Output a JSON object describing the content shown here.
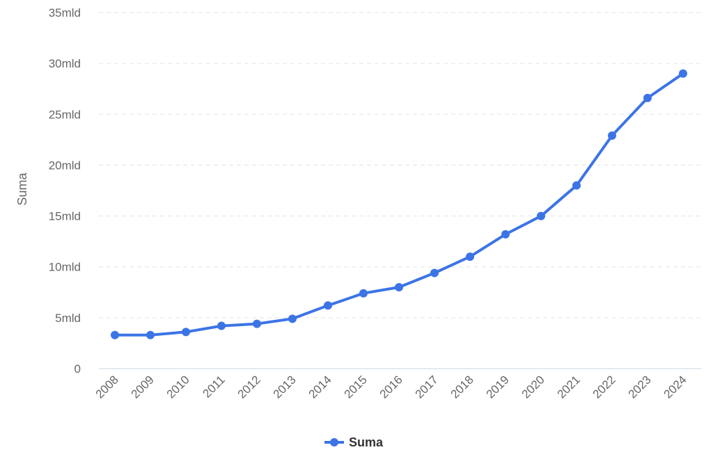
{
  "chart_data": {
    "type": "line",
    "title": "",
    "xlabel": "",
    "ylabel": "Suma",
    "ylim": [
      0,
      35
    ],
    "y_ticks": [
      {
        "value": 0,
        "label": "0"
      },
      {
        "value": 5,
        "label": "5mld"
      },
      {
        "value": 10,
        "label": "10mld"
      },
      {
        "value": 15,
        "label": "15mld"
      },
      {
        "value": 20,
        "label": "20mld"
      },
      {
        "value": 25,
        "label": "25mld"
      },
      {
        "value": 30,
        "label": "30mld"
      },
      {
        "value": 35,
        "label": "35mld"
      }
    ],
    "categories": [
      "2008",
      "2009",
      "2010",
      "2011",
      "2012",
      "2013",
      "2014",
      "2015",
      "2016",
      "2017",
      "2018",
      "2019",
      "2020",
      "2021",
      "2022",
      "2023",
      "2024"
    ],
    "series": [
      {
        "name": "Suma",
        "color": "#3c74e6",
        "values": [
          3.3,
          3.3,
          3.6,
          4.2,
          4.4,
          4.9,
          6.2,
          7.4,
          8.0,
          9.4,
          11.0,
          13.2,
          15.0,
          18.0,
          22.9,
          26.6,
          29.0
        ]
      }
    ],
    "legend": "bottom-center",
    "grid": true
  }
}
